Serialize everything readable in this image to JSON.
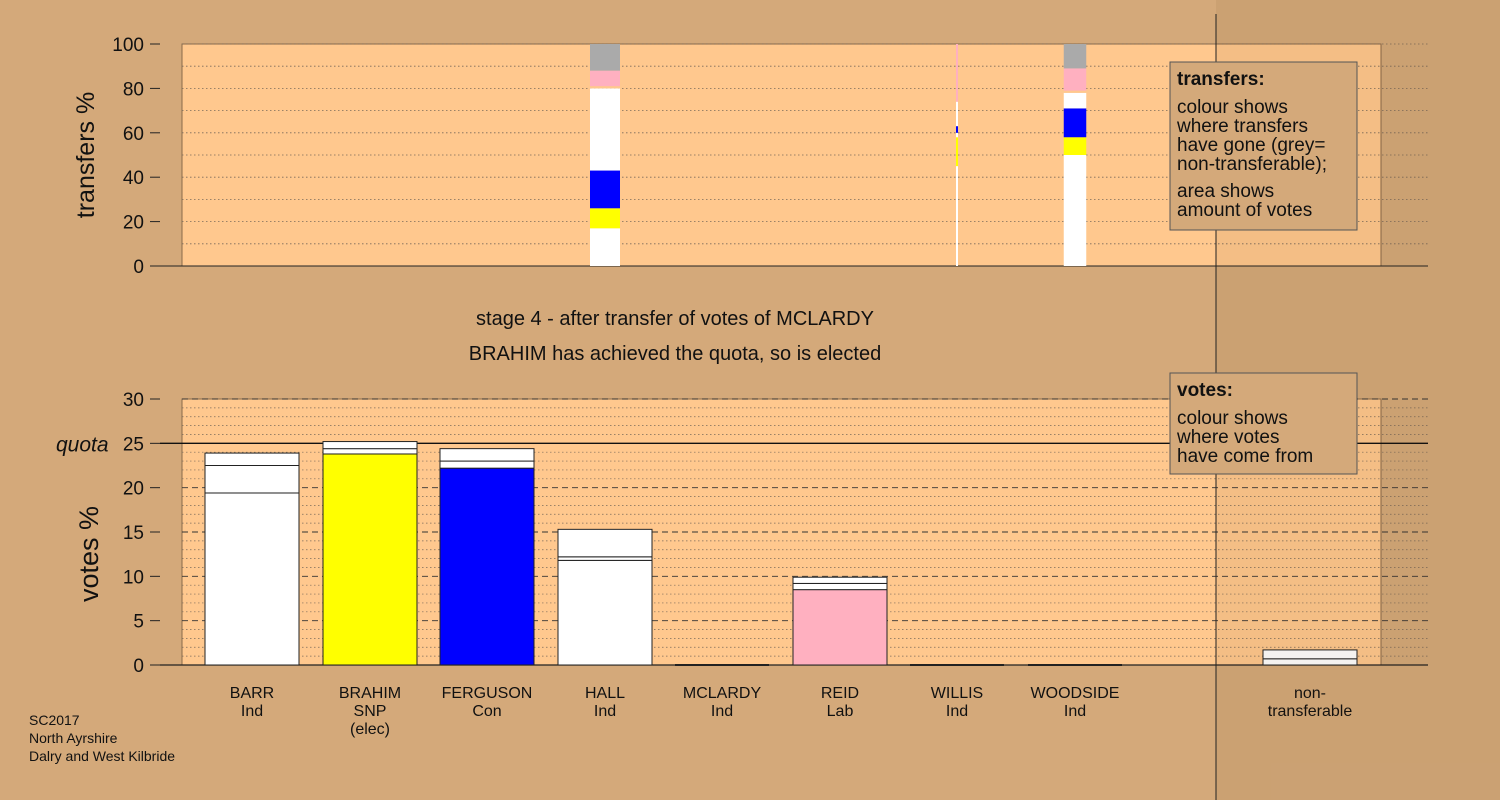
{
  "colors": {
    "background": "#d4a97a",
    "panel": "#ffc88e",
    "white_ind": "#ffffff",
    "snp": "#ffff00",
    "con": "#0000ff",
    "lab": "#ffb0c0",
    "nontransferable": "#aaaaaa"
  },
  "stage_title": "stage 4 - after transfer of votes of MCLARDY",
  "stage_subtitle": "BRAHIM has achieved the quota, so is elected",
  "footer": [
    "SC2017",
    "North Ayrshire",
    "Dalry and West Kilbride"
  ],
  "transfers_legend": {
    "title": "transfers:",
    "lines": [
      "colour shows",
      "where transfers",
      "have gone (grey=",
      "non-transferable);",
      "area shows",
      "amount of votes"
    ]
  },
  "votes_legend": {
    "title": "votes:",
    "lines": [
      "colour shows",
      "where votes",
      "have come from"
    ]
  },
  "chart_data": [
    {
      "type": "bar",
      "ylabel": "transfers %",
      "ylim": [
        0,
        100
      ],
      "yticks": [
        "0",
        "20",
        "40",
        "60",
        "80",
        "100"
      ],
      "categories": [
        "BARR",
        "BRAHIM",
        "FERGUSON",
        "HALL",
        "MCLARDY",
        "REID",
        "WILLIS",
        "WOODSIDE"
      ],
      "bars": [
        {
          "category": "HALL",
          "width_share": 1.0,
          "segments": [
            {
              "from": 0,
              "to": 17,
              "color": "#ffffff"
            },
            {
              "from": 17,
              "to": 26,
              "color": "#ffff00"
            },
            {
              "from": 26,
              "to": 43,
              "color": "#0000ff"
            },
            {
              "from": 43,
              "to": 80,
              "color": "#ffffff"
            },
            {
              "from": 80,
              "to": 81,
              "color": "#ffc88e"
            },
            {
              "from": 81,
              "to": 88,
              "color": "#ffb0c0"
            },
            {
              "from": 88,
              "to": 100,
              "color": "#aaaaaa"
            }
          ]
        },
        {
          "category": "WILLIS",
          "width_share": 0.06,
          "segments": [
            {
              "from": 0,
              "to": 45,
              "color": "#ffffff"
            },
            {
              "from": 45,
              "to": 58,
              "color": "#ffff00"
            },
            {
              "from": 58,
              "to": 60,
              "color": "#ffffff"
            },
            {
              "from": 60,
              "to": 63,
              "color": "#0000ff"
            },
            {
              "from": 63,
              "to": 74,
              "color": "#ffffff"
            },
            {
              "from": 74,
              "to": 100,
              "color": "#ffb0c0"
            }
          ]
        },
        {
          "category": "WOODSIDE",
          "width_share": 0.75,
          "segments": [
            {
              "from": 0,
              "to": 50,
              "color": "#ffffff"
            },
            {
              "from": 50,
              "to": 58,
              "color": "#ffff00"
            },
            {
              "from": 58,
              "to": 71,
              "color": "#0000ff"
            },
            {
              "from": 71,
              "to": 78,
              "color": "#ffffff"
            },
            {
              "from": 78,
              "to": 79,
              "color": "#ffc88e"
            },
            {
              "from": 79,
              "to": 89,
              "color": "#ffb0c0"
            },
            {
              "from": 89,
              "to": 100,
              "color": "#aaaaaa"
            }
          ]
        }
      ]
    },
    {
      "type": "bar",
      "ylabel": "votes %",
      "ylim": [
        0,
        30
      ],
      "yticks": [
        "0",
        "5",
        "10",
        "15",
        "20",
        "25",
        "30"
      ],
      "quota": 25,
      "quota_label": "quota",
      "candidates": [
        {
          "name": "BARR",
          "party": "Ind",
          "status": "",
          "segments": [
            {
              "from": 0,
              "to": 19.4,
              "color": "#ffffff"
            },
            {
              "from": 19.4,
              "to": 22.5,
              "color": "#ffffff"
            },
            {
              "from": 22.5,
              "to": 23.9,
              "color": "#ffffff"
            }
          ]
        },
        {
          "name": "BRAHIM",
          "party": "SNP",
          "status": "(elec)",
          "segments": [
            {
              "from": 0,
              "to": 23.8,
              "color": "#ffff00"
            },
            {
              "from": 23.8,
              "to": 24.4,
              "color": "#ffffff"
            },
            {
              "from": 24.4,
              "to": 25.2,
              "color": "#ffffff"
            }
          ]
        },
        {
          "name": "FERGUSON",
          "party": "Con",
          "status": "",
          "segments": [
            {
              "from": 0,
              "to": 22.2,
              "color": "#0000ff"
            },
            {
              "from": 22.2,
              "to": 23.0,
              "color": "#ffffff"
            },
            {
              "from": 23.0,
              "to": 24.4,
              "color": "#ffffff"
            }
          ]
        },
        {
          "name": "HALL",
          "party": "Ind",
          "status": "",
          "segments": [
            {
              "from": 0,
              "to": 11.8,
              "color": "#ffffff"
            },
            {
              "from": 11.8,
              "to": 12.2,
              "color": "#ffffff"
            },
            {
              "from": 12.2,
              "to": 15.3,
              "color": "#ffffff"
            }
          ]
        },
        {
          "name": "MCLARDY",
          "party": "Ind",
          "status": "",
          "segments": []
        },
        {
          "name": "REID",
          "party": "Lab",
          "status": "",
          "segments": [
            {
              "from": 0,
              "to": 8.5,
              "color": "#ffb0c0"
            },
            {
              "from": 8.5,
              "to": 9.2,
              "color": "#ffffff"
            },
            {
              "from": 9.2,
              "to": 9.9,
              "color": "#ffffff"
            }
          ]
        },
        {
          "name": "WILLIS",
          "party": "Ind",
          "status": "",
          "segments": []
        },
        {
          "name": "WOODSIDE",
          "party": "Ind",
          "status": "",
          "segments": []
        }
      ],
      "nontransferable": {
        "label_lines": [
          "non-",
          "transferable"
        ],
        "segments": [
          {
            "from": 0,
            "to": 0.7,
            "color": "#ffffff"
          },
          {
            "from": 0.7,
            "to": 1.7,
            "color": "#ffffff"
          }
        ]
      }
    }
  ]
}
